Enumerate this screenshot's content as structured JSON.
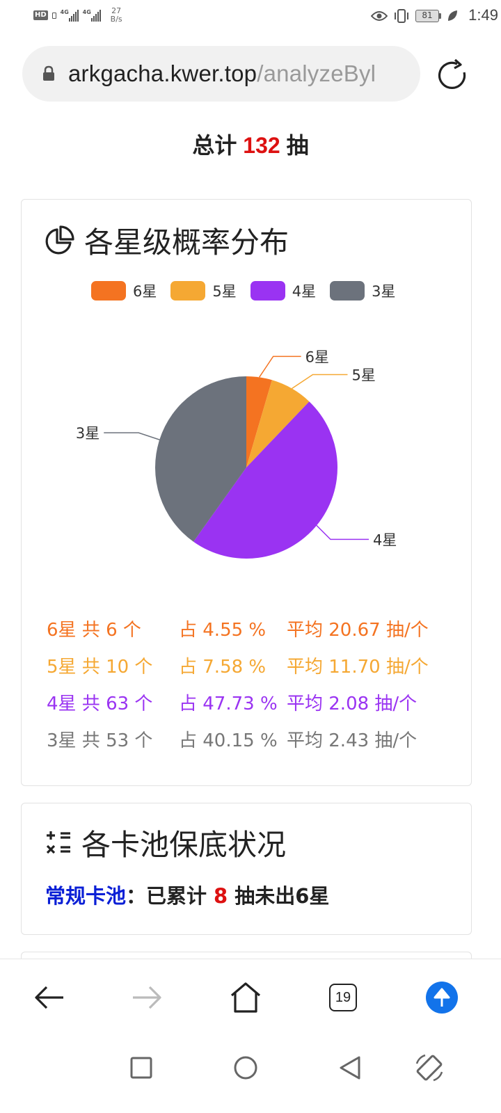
{
  "status_bar": {
    "hd": "HD",
    "signal1": "4G",
    "signal2": "4G",
    "speed_value": "27",
    "speed_unit": "B/s",
    "battery": "81",
    "time": "1:49"
  },
  "url_bar": {
    "domain": "arkgacha.kwer.top",
    "path": "/analyzeByl"
  },
  "page": {
    "total_prefix": "总计",
    "total_count": "132",
    "total_suffix": "抽"
  },
  "distribution_card": {
    "title": "各星级概率分布"
  },
  "chart_data": {
    "type": "pie",
    "labels": [
      "6星",
      "5星",
      "4星",
      "3星"
    ],
    "counts": [
      6,
      10,
      63,
      53
    ],
    "colors": [
      "#f47321",
      "#f5a833",
      "#9a33f2",
      "#6c727c"
    ],
    "legend_position": "top"
  },
  "stats": [
    {
      "count_text": "6星   共 6 个",
      "pct_text": "占 4.55 %",
      "avg_text": "平均 20.67 抽/个"
    },
    {
      "count_text": "5星  共 10 个",
      "pct_text": "占 7.58 %",
      "avg_text": "平均 11.70 抽/个"
    },
    {
      "count_text": "4星  共 63 个",
      "pct_text": "占 47.73 %",
      "avg_text": "平均 2.08 抽/个"
    },
    {
      "count_text": "3星  共 53 个",
      "pct_text": "占 40.15 %",
      "avg_text": "平均 2.43 抽/个"
    }
  ],
  "pity_card": {
    "title": "各卡池保底状况",
    "pool_name": "常规卡池",
    "colon": "：",
    "prefix": "已累计",
    "count": "8",
    "suffix": "抽未出6星"
  },
  "toolbar": {
    "tab_count": "19"
  }
}
